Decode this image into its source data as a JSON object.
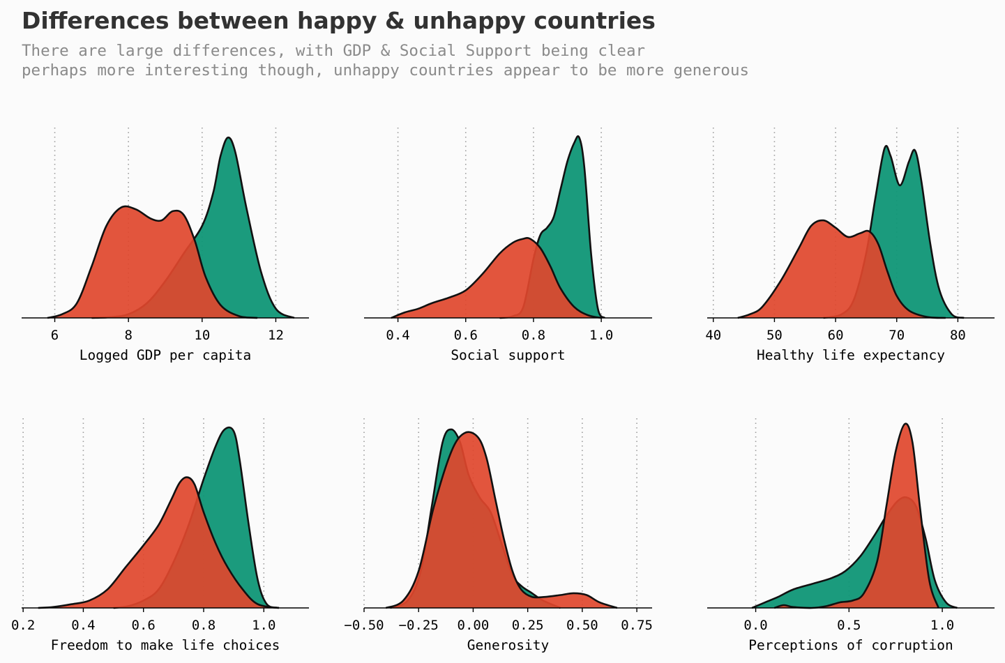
{
  "title": "Differences between happy & unhappy countries",
  "subtitle_lines": [
    "There are large differences, with GDP & Social Support being clear",
    "perhaps more interesting though, unhappy countries appear to be more generous"
  ],
  "colors": {
    "happy": "#0f9676",
    "unhappy": "#e0462c",
    "outline": "#111111",
    "grid": "#9a9a9a",
    "background": "#fbfbfb",
    "title": "#323232",
    "subtitle": "#8a8a8a"
  },
  "chart_data": [
    {
      "type": "area",
      "xlabel": "Logged GDP per capita",
      "xlim": [
        5.1,
        12.9
      ],
      "ticks": [
        6,
        8,
        10,
        12
      ],
      "tick_labels": [
        "6",
        "8",
        "10",
        "12"
      ],
      "grid": "vertical dotted",
      "series": [
        {
          "group": "happy",
          "x": [
            7.0,
            7.5,
            8.0,
            8.5,
            9.0,
            9.5,
            10.0,
            10.3,
            10.5,
            10.7,
            10.9,
            11.2,
            11.6,
            12.0,
            12.5
          ],
          "y": [
            0,
            0.004,
            0.02,
            0.08,
            0.2,
            0.35,
            0.5,
            0.68,
            0.88,
            0.98,
            0.9,
            0.6,
            0.25,
            0.05,
            0
          ]
        },
        {
          "group": "unhappy",
          "x": [
            5.8,
            6.2,
            6.6,
            7.0,
            7.4,
            7.8,
            8.2,
            8.6,
            8.9,
            9.2,
            9.5,
            9.8,
            10.1,
            10.5,
            11.0,
            11.5
          ],
          "y": [
            0,
            0.02,
            0.08,
            0.28,
            0.5,
            0.6,
            0.59,
            0.54,
            0.53,
            0.58,
            0.56,
            0.42,
            0.22,
            0.07,
            0.01,
            0
          ]
        }
      ]
    },
    {
      "type": "area",
      "xlabel": "Social support",
      "xlim": [
        0.3,
        1.15
      ],
      "ticks": [
        0.4,
        0.6,
        0.8,
        1.0
      ],
      "tick_labels": [
        "0.4",
        "0.6",
        "0.8",
        "1.0"
      ],
      "grid": "vertical dotted",
      "series": [
        {
          "group": "happy",
          "x": [
            0.7,
            0.74,
            0.77,
            0.8,
            0.82,
            0.84,
            0.86,
            0.88,
            0.9,
            0.92,
            0.935,
            0.95,
            0.97,
            0.99,
            1.01
          ],
          "y": [
            0,
            0.01,
            0.06,
            0.32,
            0.45,
            0.49,
            0.55,
            0.7,
            0.85,
            0.95,
            0.98,
            0.82,
            0.35,
            0.05,
            0
          ]
        },
        {
          "group": "unhappy",
          "x": [
            0.38,
            0.42,
            0.46,
            0.5,
            0.55,
            0.6,
            0.65,
            0.7,
            0.74,
            0.77,
            0.79,
            0.82,
            0.85,
            0.88,
            0.92,
            0.96,
            1.0
          ],
          "y": [
            0,
            0.03,
            0.05,
            0.08,
            0.11,
            0.15,
            0.24,
            0.35,
            0.41,
            0.43,
            0.43,
            0.38,
            0.28,
            0.16,
            0.06,
            0.015,
            0
          ]
        }
      ]
    },
    {
      "type": "area",
      "xlabel": "Healthy life expectancy",
      "xlim": [
        39,
        86
      ],
      "ticks": [
        40,
        50,
        60,
        70,
        80
      ],
      "tick_labels": [
        "40",
        "50",
        "60",
        "70",
        "80"
      ],
      "grid": "vertical dotted",
      "series": [
        {
          "group": "happy",
          "x": [
            58,
            61,
            63,
            65,
            66.5,
            68,
            69,
            70.5,
            72,
            73,
            74,
            75.5,
            77,
            79,
            81
          ],
          "y": [
            0,
            0.02,
            0.1,
            0.35,
            0.65,
            0.92,
            0.88,
            0.72,
            0.85,
            0.91,
            0.75,
            0.4,
            0.15,
            0.02,
            0
          ]
        },
        {
          "group": "unhappy",
          "x": [
            44,
            46,
            48,
            51,
            54,
            56,
            58,
            60,
            62,
            64,
            65.5,
            67,
            68.5,
            70,
            72,
            75,
            78
          ],
          "y": [
            0,
            0.02,
            0.06,
            0.2,
            0.38,
            0.5,
            0.53,
            0.49,
            0.44,
            0.46,
            0.47,
            0.4,
            0.25,
            0.12,
            0.04,
            0.005,
            0
          ]
        }
      ]
    },
    {
      "type": "area",
      "xlabel": "Freedom to make life choices",
      "xlim": [
        0.195,
        1.15
      ],
      "ticks": [
        0.2,
        0.4,
        0.6,
        0.8,
        1.0
      ],
      "tick_labels": [
        "0.2",
        "0.4",
        "0.6",
        "0.8",
        "1.0"
      ],
      "grid": "vertical dotted",
      "series": [
        {
          "group": "happy",
          "x": [
            0.5,
            0.55,
            0.6,
            0.65,
            0.7,
            0.75,
            0.8,
            0.84,
            0.87,
            0.9,
            0.92,
            0.95,
            0.98,
            1.01,
            1.05
          ],
          "y": [
            0,
            0.01,
            0.04,
            0.1,
            0.25,
            0.45,
            0.7,
            0.88,
            0.97,
            0.96,
            0.8,
            0.45,
            0.15,
            0.02,
            0
          ]
        },
        {
          "group": "unhappy",
          "x": [
            0.25,
            0.3,
            0.36,
            0.42,
            0.48,
            0.54,
            0.6,
            0.65,
            0.69,
            0.72,
            0.745,
            0.77,
            0.8,
            0.84,
            0.88,
            0.93,
            0.98,
            1.05
          ],
          "y": [
            0,
            0.005,
            0.02,
            0.04,
            0.1,
            0.22,
            0.34,
            0.45,
            0.58,
            0.68,
            0.71,
            0.67,
            0.52,
            0.35,
            0.22,
            0.1,
            0.02,
            0
          ]
        }
      ]
    },
    {
      "type": "area",
      "xlabel": "Generosity",
      "xlim": [
        -0.5,
        0.82
      ],
      "ticks": [
        -0.5,
        -0.25,
        0.0,
        0.25,
        0.5,
        0.75
      ],
      "tick_labels": [
        "−0.50",
        "−0.25",
        "0.00",
        "0.25",
        "0.50",
        "0.75"
      ],
      "grid": "vertical dotted",
      "series": [
        {
          "group": "happy",
          "x": [
            -0.38,
            -0.3,
            -0.24,
            -0.19,
            -0.14,
            -0.1,
            -0.06,
            -0.02,
            0.03,
            0.08,
            0.13,
            0.18,
            0.22,
            0.27,
            0.32,
            0.4
          ],
          "y": [
            0,
            0.04,
            0.2,
            0.55,
            0.9,
            0.97,
            0.9,
            0.72,
            0.6,
            0.52,
            0.35,
            0.18,
            0.12,
            0.08,
            0.04,
            0
          ]
        },
        {
          "group": "unhappy",
          "x": [
            -0.4,
            -0.32,
            -0.25,
            -0.18,
            -0.1,
            -0.04,
            0.02,
            0.06,
            0.1,
            0.14,
            0.18,
            0.22,
            0.27,
            0.33,
            0.4,
            0.46,
            0.52,
            0.58,
            0.66
          ],
          "y": [
            0,
            0.04,
            0.2,
            0.55,
            0.85,
            0.95,
            0.93,
            0.82,
            0.6,
            0.38,
            0.2,
            0.1,
            0.06,
            0.06,
            0.07,
            0.08,
            0.07,
            0.03,
            0
          ]
        }
      ]
    },
    {
      "type": "area",
      "xlabel": "Perceptions of corruption",
      "xlim": [
        -0.26,
        1.28
      ],
      "ticks": [
        0.0,
        0.5,
        1.0
      ],
      "tick_labels": [
        "0.0",
        "0.5",
        "1.0"
      ],
      "grid": "vertical dotted",
      "series": [
        {
          "group": "happy",
          "x": [
            -0.02,
            0.05,
            0.12,
            0.2,
            0.3,
            0.4,
            0.48,
            0.56,
            0.64,
            0.7,
            0.76,
            0.81,
            0.86,
            0.91,
            0.96,
            1.02,
            1.08
          ],
          "y": [
            0,
            0.03,
            0.06,
            0.1,
            0.13,
            0.16,
            0.2,
            0.28,
            0.4,
            0.5,
            0.58,
            0.6,
            0.55,
            0.38,
            0.15,
            0.03,
            0
          ]
        },
        {
          "group": "unhappy",
          "x": [
            0.1,
            0.15,
            0.2,
            0.3,
            0.38,
            0.45,
            0.52,
            0.58,
            0.65,
            0.7,
            0.75,
            0.8,
            0.84,
            0.88,
            0.93,
            0.98
          ],
          "y": [
            0,
            0.015,
            0.005,
            0.0,
            0.01,
            0.03,
            0.04,
            0.08,
            0.25,
            0.55,
            0.85,
            1.0,
            0.9,
            0.55,
            0.15,
            0
          ]
        }
      ]
    }
  ]
}
